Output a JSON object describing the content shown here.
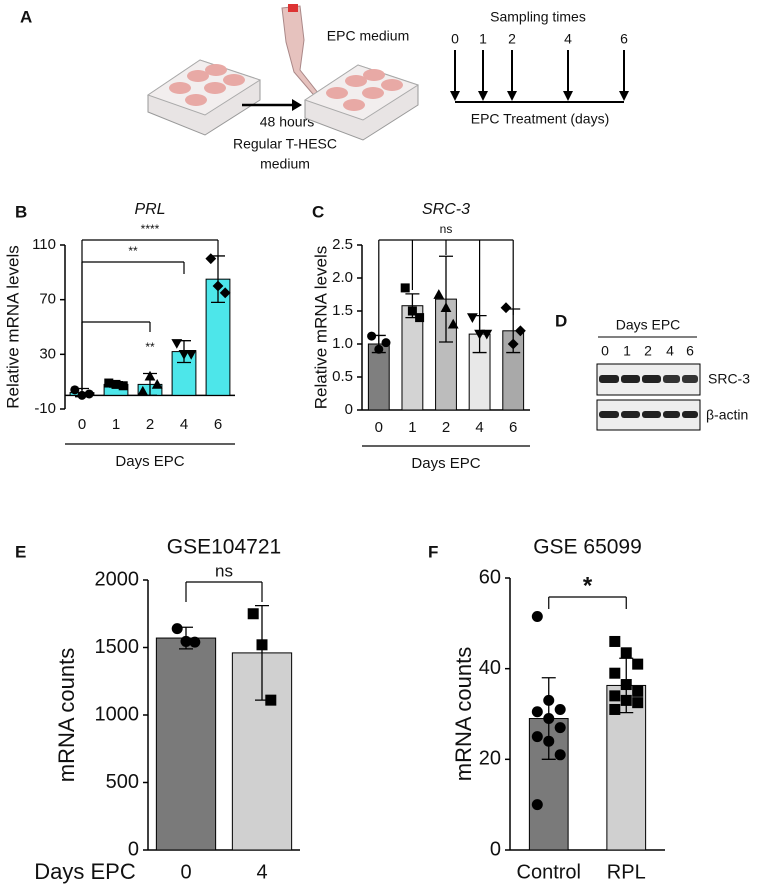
{
  "schematic": {
    "panel": "A",
    "pipette_label": "EPC medium",
    "step_label": [
      "48 hours",
      "Regular T-HESC",
      "medium"
    ],
    "sampling_title": "Sampling times",
    "sampling_days": [
      "0",
      "1",
      "2",
      "4",
      "6"
    ],
    "timeline_label": "EPC Treatment (days)"
  },
  "western_blot": {
    "panel": "D",
    "header": "Days EPC",
    "lanes": [
      "0",
      "1",
      "2",
      "4",
      "6"
    ],
    "rows": [
      "SRC-3",
      "β-actin"
    ]
  },
  "chart_data": [
    {
      "type": "bar",
      "panel": "B",
      "title": "PRL",
      "y_label": "Relative mRNA levels",
      "x_label": "Days EPC",
      "categories": [
        "0",
        "1",
        "2",
        "4",
        "6"
      ],
      "values": [
        2,
        8,
        8,
        32,
        85
      ],
      "errors": [
        3,
        2,
        8,
        8,
        17
      ],
      "points": [
        [
          4,
          0,
          1
        ],
        [
          9,
          8,
          7
        ],
        [
          3,
          14,
          8
        ],
        [
          38,
          30,
          30
        ],
        [
          100,
          80,
          75
        ]
      ],
      "colors": [
        "#4de6ea",
        "#4de6ea",
        "#4de6ea",
        "#4de6ea",
        "#4de6ea"
      ],
      "ylim": [
        -10,
        110
      ],
      "yticks": [
        -10,
        30,
        70,
        110
      ],
      "annotations": [
        "****",
        "**",
        "**"
      ]
    },
    {
      "type": "bar",
      "panel": "C",
      "title": "SRC-3",
      "y_label": "Relative mRNA levels",
      "x_label": "Days EPC",
      "categories": [
        "0",
        "1",
        "2",
        "4",
        "6"
      ],
      "values": [
        1.0,
        1.58,
        1.68,
        1.15,
        1.2
      ],
      "errors": [
        0.13,
        0.18,
        0.65,
        0.28,
        0.33
      ],
      "points": [
        [
          1.12,
          0.92,
          1.02
        ],
        [
          1.85,
          1.5,
          1.4
        ],
        [
          1.75,
          1.55,
          1.3
        ],
        [
          1.4,
          1.15,
          1.15
        ],
        [
          1.55,
          1.0,
          1.2
        ]
      ],
      "colors": [
        "#7f7f7f",
        "#d3d3d3",
        "#bcbcbc",
        "#e8e8e8",
        "#a9a9a9"
      ],
      "ylim": [
        0,
        2.5
      ],
      "yticks": [
        0,
        0.5,
        {
          "value": 1,
          "label": "1.0"
        },
        1.5,
        {
          "value": 2,
          "label": "2.0"
        },
        2.5
      ],
      "annotations": [
        "ns"
      ]
    },
    {
      "type": "bar",
      "panel": "E",
      "title": "GSE104721",
      "y_label": "mRNA counts",
      "x_label": "Days EPC",
      "categories": [
        "0",
        "4"
      ],
      "values": [
        1570,
        1460
      ],
      "errors": [
        80,
        350
      ],
      "points": [
        [
          1640,
          1545,
          1540
        ],
        [
          1750,
          1520,
          1110
        ]
      ],
      "colors": [
        "#7a7a7a",
        "#d0d0d0"
      ],
      "ylim": [
        0,
        2000
      ],
      "yticks": [
        0,
        500,
        1000,
        1500,
        2000
      ],
      "annotations": [
        "ns"
      ]
    },
    {
      "type": "bar",
      "panel": "F",
      "title": "GSE 65099",
      "y_label": "mRNA counts",
      "categories": [
        "Control",
        "RPL"
      ],
      "values": [
        29,
        36.3
      ],
      "errors": [
        9,
        6
      ],
      "points": [
        [
          51.5,
          33,
          31,
          30.5,
          29,
          27,
          25,
          24,
          21,
          10
        ],
        [
          46,
          43.5,
          41,
          39,
          36.5,
          35,
          34,
          33,
          32.5,
          31
        ]
      ],
      "colors": [
        "#7a7a7a",
        "#d0d0d0"
      ],
      "ylim": [
        0,
        60
      ],
      "yticks": [
        0,
        20,
        40,
        60
      ],
      "annotations": [
        "*"
      ]
    }
  ]
}
